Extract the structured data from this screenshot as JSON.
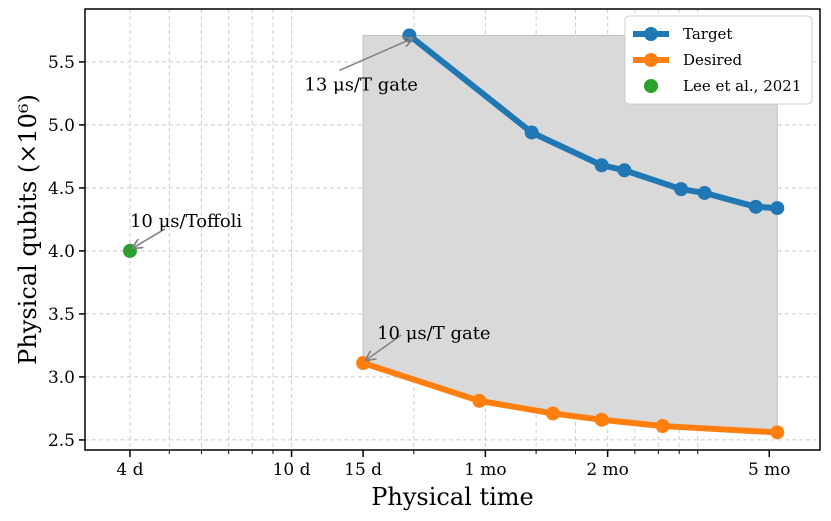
{
  "chart_data": {
    "type": "line",
    "xscale": "log",
    "xlabel": "Physical time",
    "ylabel": "Physical qubits (×10⁶)",
    "ylim": [
      2.42,
      5.92
    ],
    "xlim_days": [
      3.1,
      200
    ],
    "grid": true,
    "legend_position": "top-right",
    "x_ticks": [
      {
        "label": "4 d",
        "days": 4
      },
      {
        "label": "10 d",
        "days": 10
      },
      {
        "label": "15 d",
        "days": 15
      },
      {
        "label": "1 mo",
        "days": 30
      },
      {
        "label": "2 mo",
        "days": 60
      },
      {
        "label": "5 mo",
        "days": 150
      }
    ],
    "y_ticks": [
      "2.5",
      "3.0",
      "3.5",
      "4.0",
      "4.5",
      "5.0",
      "5.5"
    ],
    "series": [
      {
        "name": "Target",
        "color": "#1f77b4",
        "x_days": [
          19.5,
          39,
          58,
          66,
          91,
          104,
          139,
          157
        ],
        "y": [
          5.71,
          4.94,
          4.68,
          4.64,
          4.49,
          4.46,
          4.35,
          4.34
        ]
      },
      {
        "name": "Desired",
        "color": "#ff7f0e",
        "x_days": [
          15,
          29,
          44,
          58,
          82,
          157
        ],
        "y": [
          3.11,
          2.81,
          2.71,
          2.66,
          2.61,
          2.56
        ]
      },
      {
        "name": "Lee et al., 2021",
        "color": "#2ca02c",
        "marker_only": true,
        "x_days": [
          4
        ],
        "y": [
          4.0
        ]
      }
    ],
    "shaded_region": {
      "color": "#d9d9d9",
      "x_days": [
        15,
        157
      ],
      "upper": 5.71,
      "lower_follows": "Desired"
    },
    "annotations": [
      {
        "text": "13 μs/T gate",
        "points_to_series": "Target",
        "index": 0
      },
      {
        "text": "10 μs/T gate",
        "points_to_series": "Desired",
        "index": 0
      },
      {
        "text": "10 μs/Toffoli",
        "points_to_series": "Lee et al., 2021",
        "index": 0
      }
    ]
  }
}
